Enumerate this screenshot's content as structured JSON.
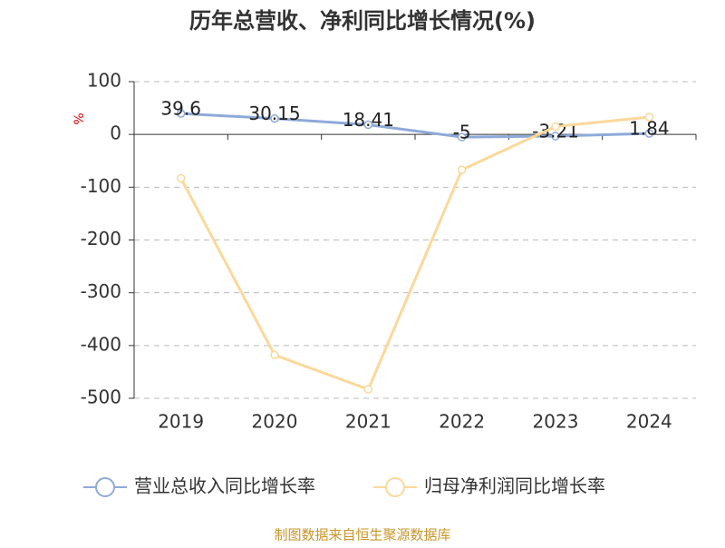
{
  "chart_data": {
    "type": "line",
    "title": "历年总营收、净利同比增长情况(%)",
    "y_label": "%",
    "categories": [
      "2019",
      "2020",
      "2021",
      "2022",
      "2023",
      "2024"
    ],
    "series": [
      {
        "name": "营业总收入同比增长率",
        "color": "#8eaad9",
        "values": [
          39.6,
          30.15,
          18.41,
          -5,
          -3.21,
          1.84
        ],
        "show_labels": true
      },
      {
        "name": "归母净利润同比增长率",
        "color": "#fcd89a",
        "values": [
          -83,
          -418,
          -483,
          -67,
          15,
          33
        ],
        "show_labels": false
      }
    ],
    "ylim": [
      -500,
      100
    ],
    "yticks": [
      -500,
      -400,
      -300,
      -200,
      -100,
      0,
      100
    ],
    "grid": true,
    "source": "制图数据来自恒生聚源数据库"
  }
}
